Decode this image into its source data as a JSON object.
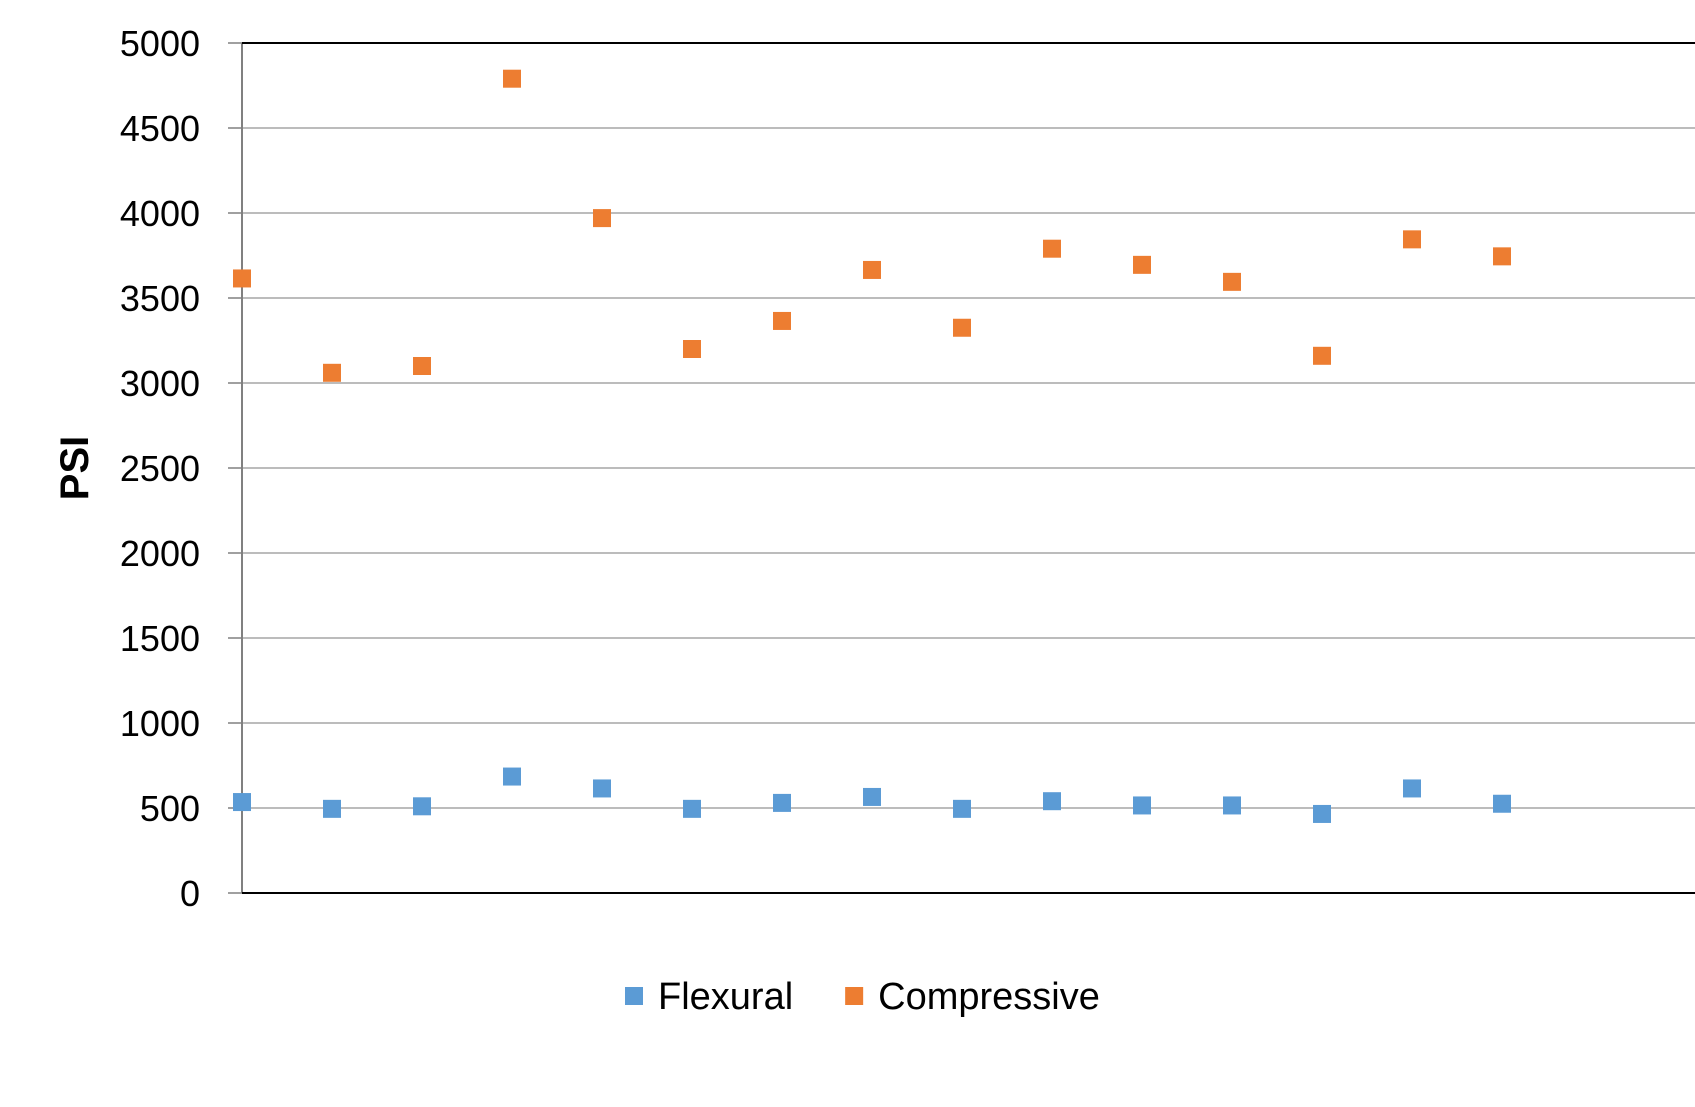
{
  "chart_data": {
    "type": "scatter",
    "title": "",
    "xlabel": "",
    "ylabel": "PSI",
    "ylim": [
      0,
      5000
    ],
    "yticks": [
      0,
      500,
      1000,
      1500,
      2000,
      2500,
      3000,
      3500,
      4000,
      4500,
      5000
    ],
    "ytick_labels": [
      "0",
      "500",
      "1000",
      "1500",
      "2000",
      "2500",
      "3000",
      "3500",
      "4000",
      "4500",
      "5000"
    ],
    "x": [
      1,
      2,
      3,
      4,
      5,
      6,
      7,
      8,
      9,
      10,
      11,
      12,
      13,
      14,
      15
    ],
    "grid": "horizontal",
    "legend_position": "bottom",
    "series": [
      {
        "name": "Flexural",
        "color": "#5B9BD5",
        "marker": "square",
        "values": [
          535,
          495,
          510,
          685,
          615,
          495,
          530,
          565,
          495,
          540,
          515,
          515,
          465,
          615,
          525
        ]
      },
      {
        "name": "Compressive",
        "color": "#ED7D31",
        "marker": "square",
        "values": [
          3615,
          3060,
          3100,
          4790,
          3970,
          3200,
          3365,
          3665,
          3325,
          3790,
          3695,
          3595,
          3160,
          3845,
          3745
        ]
      }
    ]
  }
}
